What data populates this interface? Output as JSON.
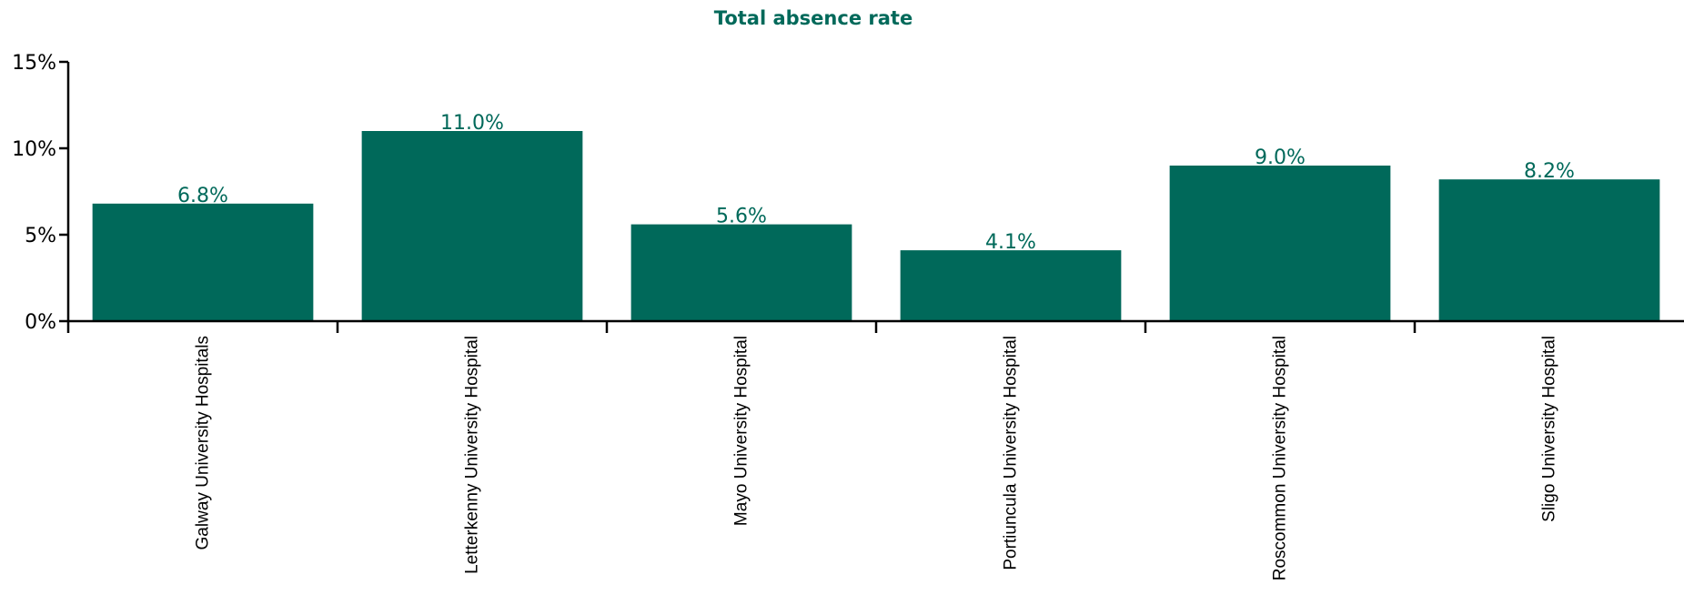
{
  "chart_data": {
    "type": "bar",
    "title": "Total absence rate",
    "categories": [
      "Galway University Hospitals",
      "Letterkenny University Hospital",
      "Mayo University Hospital",
      "Portiuncula University Hospital",
      "Roscommon University Hospital",
      "Sligo University Hospital"
    ],
    "values": [
      6.8,
      11.0,
      5.6,
      4.1,
      9.0,
      8.2
    ],
    "data_labels": [
      "6.8%",
      "11.0%",
      "5.6%",
      "4.1%",
      "9.0%",
      "8.2%"
    ],
    "ylim": [
      0,
      15
    ],
    "y_ticks": [
      0,
      5,
      10,
      15
    ],
    "y_tick_labels": [
      "0%",
      "5%",
      "10%",
      "15%"
    ],
    "xlabel": "",
    "ylabel": "",
    "grid": false,
    "legend": "none",
    "colors": {
      "bar": "#00695A",
      "title": "#00695A",
      "data_label": "#00695A",
      "axis": "#000000"
    }
  }
}
